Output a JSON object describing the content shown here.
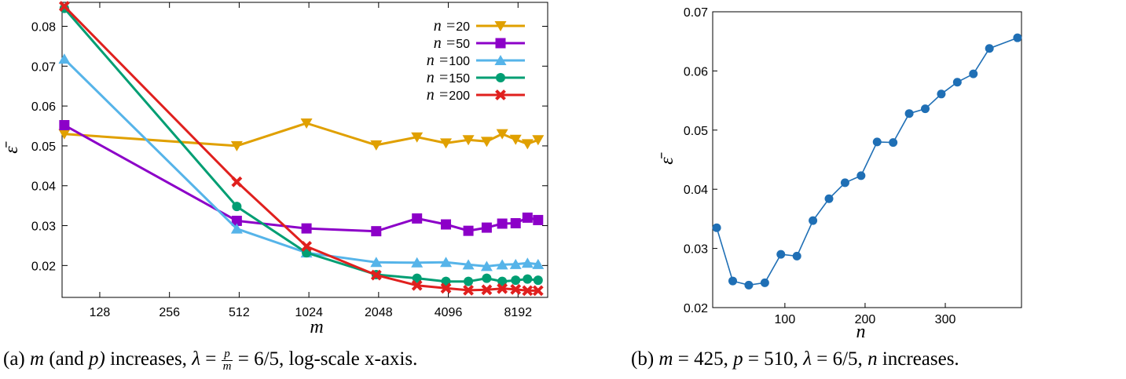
{
  "chart_data": [
    {
      "type": "line",
      "id": "a",
      "x_scale": "log2",
      "xlabel": "m",
      "ylabel": "ε̄",
      "xlim": [
        88,
        11000
      ],
      "ylim": [
        0.012,
        0.086
      ],
      "x_ticks": [
        128,
        256,
        512,
        1024,
        2048,
        4096,
        8192
      ],
      "y_ticks": [
        0.02,
        0.03,
        0.04,
        0.05,
        0.06,
        0.07,
        0.08
      ],
      "legend_position": "top-right",
      "caption": "(a) m (and p) increases, λ = p/m = 6/5, log-scale x-axis.",
      "series": [
        {
          "name": "n=20",
          "legend": "20",
          "color": "#E0A000",
          "marker": "triangle-down",
          "x": [
            90,
            500,
            1000,
            2000,
            3000,
            4000,
            5000,
            6000,
            7000,
            8000,
            9000,
            10000
          ],
          "y": [
            0.053,
            0.05,
            0.0557,
            0.0502,
            0.0522,
            0.0507,
            0.0515,
            0.0511,
            0.053,
            0.0516,
            0.0505,
            0.0515
          ]
        },
        {
          "name": "n=50",
          "legend": "50",
          "color": "#8C00C8",
          "marker": "square",
          "x": [
            90,
            500,
            1000,
            2000,
            3000,
            4000,
            5000,
            6000,
            7000,
            8000,
            9000,
            10000
          ],
          "y": [
            0.0552,
            0.0312,
            0.0293,
            0.0286,
            0.0318,
            0.0303,
            0.0287,
            0.0295,
            0.0305,
            0.0306,
            0.032,
            0.0314
          ]
        },
        {
          "name": "n=100",
          "legend": "100",
          "color": "#56B4E9",
          "marker": "triangle-up",
          "x": [
            90,
            500,
            1000,
            2000,
            3000,
            4000,
            5000,
            6000,
            7000,
            8000,
            9000,
            10000
          ],
          "y": [
            0.0718,
            0.0292,
            0.0232,
            0.0208,
            0.0207,
            0.0208,
            0.0202,
            0.0198,
            0.0202,
            0.0203,
            0.0206,
            0.0203
          ]
        },
        {
          "name": "n=150",
          "legend": "150",
          "color": "#009E73",
          "marker": "circle",
          "x": [
            90,
            500,
            1000,
            2000,
            3000,
            4000,
            5000,
            6000,
            7000,
            8000,
            9000,
            10000
          ],
          "y": [
            0.0845,
            0.0348,
            0.0232,
            0.0177,
            0.0168,
            0.016,
            0.016,
            0.0168,
            0.016,
            0.0163,
            0.0166,
            0.0163
          ]
        },
        {
          "name": "n=200",
          "legend": "200",
          "color": "#E0201E",
          "marker": "x",
          "x": [
            90,
            500,
            1000,
            2000,
            3000,
            4000,
            5000,
            6000,
            7000,
            8000,
            9000,
            10000
          ],
          "y": [
            0.085,
            0.041,
            0.0248,
            0.0176,
            0.015,
            0.0143,
            0.0138,
            0.0139,
            0.0142,
            0.014,
            0.0137,
            0.0137
          ]
        }
      ]
    },
    {
      "type": "line",
      "id": "b",
      "xlabel": "n",
      "ylabel": "ε̄",
      "xlim": [
        10,
        395
      ],
      "ylim": [
        0.02,
        0.07
      ],
      "x_ticks": [
        100,
        200,
        300
      ],
      "y_ticks": [
        0.02,
        0.03,
        0.04,
        0.05,
        0.06,
        0.07
      ],
      "caption": "(b) m = 425, p = 510, λ = 6/5, n increases.",
      "series": [
        {
          "name": "ε̄",
          "color": "#1F6FB5",
          "marker": "circle",
          "x": [
            15,
            35,
            55,
            75,
            95,
            115,
            135,
            155,
            175,
            195,
            215,
            235,
            255,
            275,
            295,
            315,
            335,
            355,
            390
          ],
          "y": [
            0.0335,
            0.0245,
            0.0238,
            0.0242,
            0.029,
            0.0287,
            0.0347,
            0.0384,
            0.0411,
            0.0423,
            0.048,
            0.0479,
            0.0528,
            0.0536,
            0.0561,
            0.0581,
            0.0595,
            0.0638,
            0.0656
          ]
        }
      ]
    }
  ],
  "legend": {
    "prefix": "n",
    "equals": "="
  },
  "captions": {
    "a": {
      "label": "(a)",
      "m": "m",
      "and_p": "(and",
      "p": "p)",
      "increases": "increases,",
      "lambda": "λ",
      "eq": "=",
      "frac_num": "p",
      "frac_den": "m",
      "value": "= 6/5,",
      "rest": "log-scale x-axis."
    },
    "b": {
      "label": "(b)",
      "text_m": "m",
      "m_val": "= 425,",
      "text_p": "p",
      "p_val": "= 510,",
      "lambda": "λ",
      "lam_val": "= 6/5,",
      "text_n": "n",
      "rest": "increases."
    }
  }
}
